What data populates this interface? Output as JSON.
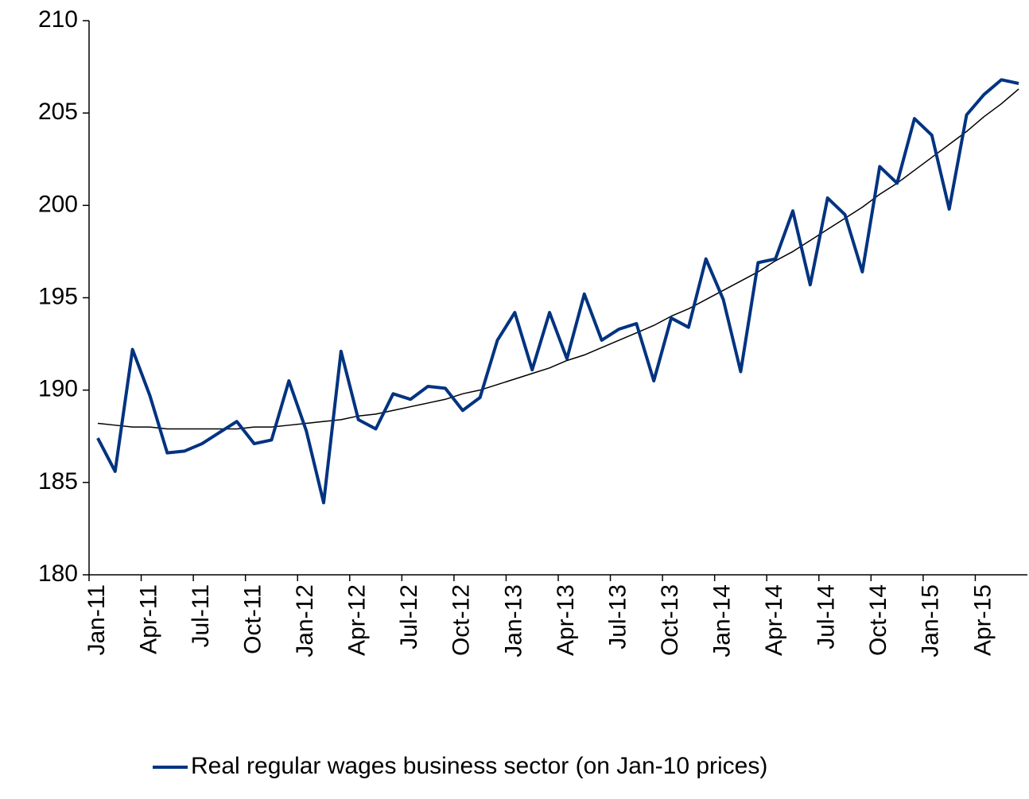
{
  "chart_data": {
    "type": "line",
    "categories": [
      "Jan-11",
      null,
      null,
      "Apr-11",
      null,
      null,
      "Jul-11",
      null,
      null,
      "Oct-11",
      null,
      null,
      "Jan-12",
      null,
      null,
      "Apr-12",
      null,
      null,
      "Jul-12",
      null,
      null,
      "Oct-12",
      null,
      null,
      "Jan-13",
      null,
      null,
      "Apr-13",
      null,
      null,
      "Jul-13",
      null,
      null,
      "Oct-13",
      null,
      null,
      "Jan-14",
      null,
      null,
      "Apr-14",
      null,
      null,
      "Jul-14",
      null,
      null,
      "Oct-14",
      null,
      null,
      "Jan-15",
      null,
      null,
      "Apr-15",
      null,
      null
    ],
    "series": [
      {
        "name": "Real regular wages business sector (on Jan-10 prices)",
        "color": "#003380",
        "values": [
          187.4,
          185.6,
          192.2,
          189.7,
          186.6,
          186.7,
          187.1,
          187.7,
          188.3,
          187.1,
          187.3,
          190.5,
          187.8,
          183.9,
          192.1,
          188.4,
          187.9,
          189.8,
          189.5,
          190.2,
          190.1,
          188.9,
          189.6,
          192.7,
          194.2,
          191.1,
          194.2,
          191.7,
          195.2,
          192.7,
          193.3,
          193.6,
          190.5,
          193.9,
          193.4,
          197.1,
          194.9,
          191.0,
          196.9,
          197.1,
          199.7,
          195.7,
          200.4,
          199.5,
          196.4,
          202.1,
          201.2,
          204.7,
          203.8,
          199.8,
          204.9,
          206.0,
          206.8,
          206.6
        ]
      },
      {
        "color": "#000000",
        "values": [
          188.2,
          188.1,
          188.0,
          188.0,
          187.9,
          187.9,
          187.9,
          187.9,
          187.9,
          188.0,
          188.0,
          188.1,
          188.2,
          188.3,
          188.4,
          188.6,
          188.7,
          188.9,
          189.1,
          189.3,
          189.5,
          189.8,
          190.0,
          190.3,
          190.6,
          190.9,
          191.2,
          191.6,
          191.9,
          192.3,
          192.7,
          193.1,
          193.5,
          194.0,
          194.4,
          194.9,
          195.4,
          195.9,
          196.4,
          197.0,
          197.5,
          198.1,
          198.7,
          199.3,
          199.9,
          200.6,
          201.2,
          201.9,
          202.6,
          203.3,
          204.0,
          204.8,
          205.5,
          206.3
        ]
      }
    ],
    "ylim": [
      180,
      210
    ],
    "yticks": [
      180,
      185,
      190,
      195,
      200,
      205,
      210
    ],
    "grid": false,
    "legend": "bottom"
  }
}
